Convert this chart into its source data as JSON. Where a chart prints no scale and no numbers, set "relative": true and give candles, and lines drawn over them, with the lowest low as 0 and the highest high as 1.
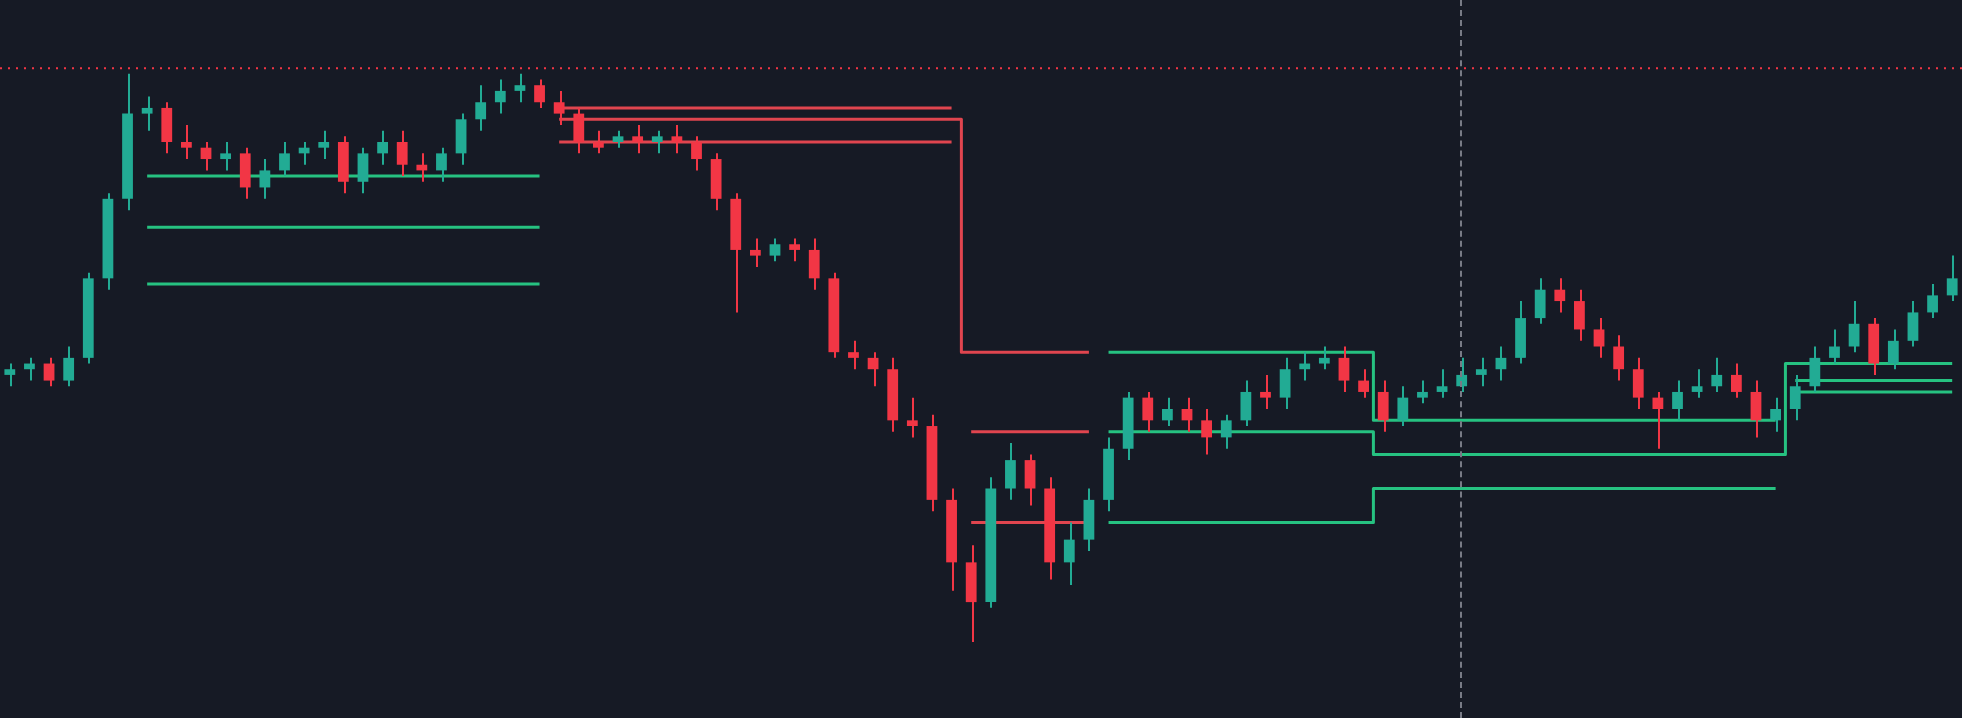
{
  "chart_data": {
    "type": "candlestick",
    "relative": true,
    "grid": false,
    "legend": false,
    "categories": [
      null,
      null,
      null,
      null,
      null,
      null,
      null,
      null,
      null,
      null,
      null,
      null,
      null,
      null,
      null,
      null,
      null,
      null,
      null,
      null,
      null,
      null,
      null,
      null,
      null,
      null,
      null,
      null,
      null,
      null,
      null,
      null,
      null,
      null,
      null,
      null,
      null,
      null,
      null,
      null,
      null,
      null,
      null,
      null,
      null,
      null,
      null,
      null,
      null,
      null,
      null,
      null,
      null,
      null,
      null,
      null,
      null,
      null,
      null,
      null,
      null,
      null,
      null,
      null,
      null,
      null,
      null,
      null,
      null,
      null,
      null,
      null,
      null,
      null,
      null,
      null,
      null,
      null,
      null,
      null,
      null,
      null,
      null,
      null,
      null,
      null,
      null,
      null,
      null,
      null,
      null,
      null,
      null,
      null,
      null,
      null,
      null,
      null,
      null,
      null
    ],
    "ohlc": [
      [
        0.47,
        0.49,
        0.45,
        0.48
      ],
      [
        0.48,
        0.5,
        0.46,
        0.49
      ],
      [
        0.49,
        0.5,
        0.45,
        0.46
      ],
      [
        0.46,
        0.52,
        0.45,
        0.5
      ],
      [
        0.5,
        0.65,
        0.49,
        0.64
      ],
      [
        0.64,
        0.79,
        0.62,
        0.78
      ],
      [
        0.78,
        1,
        0.76,
        0.93
      ],
      [
        0.93,
        0.96,
        0.9,
        0.94
      ],
      [
        0.94,
        0.95,
        0.86,
        0.88
      ],
      [
        0.88,
        0.91,
        0.85,
        0.87
      ],
      [
        0.87,
        0.88,
        0.83,
        0.85
      ],
      [
        0.85,
        0.88,
        0.83,
        0.86
      ],
      [
        0.86,
        0.87,
        0.78,
        0.8
      ],
      [
        0.8,
        0.85,
        0.78,
        0.83
      ],
      [
        0.83,
        0.88,
        0.82,
        0.86
      ],
      [
        0.86,
        0.88,
        0.84,
        0.87
      ],
      [
        0.87,
        0.9,
        0.85,
        0.88
      ],
      [
        0.88,
        0.89,
        0.79,
        0.81
      ],
      [
        0.81,
        0.87,
        0.79,
        0.86
      ],
      [
        0.86,
        0.9,
        0.84,
        0.88
      ],
      [
        0.88,
        0.9,
        0.82,
        0.84
      ],
      [
        0.84,
        0.86,
        0.81,
        0.83
      ],
      [
        0.83,
        0.87,
        0.81,
        0.86
      ],
      [
        0.86,
        0.93,
        0.84,
        0.92
      ],
      [
        0.92,
        0.98,
        0.9,
        0.95
      ],
      [
        0.95,
        0.99,
        0.93,
        0.97
      ],
      [
        0.97,
        1,
        0.95,
        0.98
      ],
      [
        0.98,
        0.99,
        0.94,
        0.95
      ],
      [
        0.95,
        0.97,
        0.91,
        0.93
      ],
      [
        0.93,
        0.94,
        0.86,
        0.88
      ],
      [
        0.88,
        0.9,
        0.86,
        0.87
      ],
      [
        0.88,
        0.9,
        0.87,
        0.89
      ],
      [
        0.89,
        0.91,
        0.86,
        0.88
      ],
      [
        0.88,
        0.9,
        0.86,
        0.89
      ],
      [
        0.89,
        0.91,
        0.86,
        0.88
      ],
      [
        0.88,
        0.89,
        0.83,
        0.85
      ],
      [
        0.85,
        0.86,
        0.76,
        0.78
      ],
      [
        0.78,
        0.79,
        0.58,
        0.69
      ],
      [
        0.69,
        0.71,
        0.66,
        0.68
      ],
      [
        0.68,
        0.71,
        0.67,
        0.7
      ],
      [
        0.7,
        0.71,
        0.67,
        0.69
      ],
      [
        0.69,
        0.71,
        0.62,
        0.64
      ],
      [
        0.64,
        0.65,
        0.5,
        0.51
      ],
      [
        0.51,
        0.53,
        0.48,
        0.5
      ],
      [
        0.5,
        0.51,
        0.45,
        0.48
      ],
      [
        0.48,
        0.5,
        0.37,
        0.39
      ],
      [
        0.39,
        0.43,
        0.36,
        0.38
      ],
      [
        0.38,
        0.4,
        0.23,
        0.25
      ],
      [
        0.25,
        0.27,
        0.09,
        0.14
      ],
      [
        0.14,
        0.17,
        0,
        0.07
      ],
      [
        0.07,
        0.29,
        0.06,
        0.27
      ],
      [
        0.27,
        0.35,
        0.25,
        0.32
      ],
      [
        0.32,
        0.33,
        0.24,
        0.27
      ],
      [
        0.27,
        0.29,
        0.11,
        0.14
      ],
      [
        0.14,
        0.21,
        0.1,
        0.18
      ],
      [
        0.18,
        0.27,
        0.16,
        0.25
      ],
      [
        0.25,
        0.36,
        0.23,
        0.34
      ],
      [
        0.34,
        0.44,
        0.32,
        0.43
      ],
      [
        0.43,
        0.44,
        0.37,
        0.39
      ],
      [
        0.39,
        0.43,
        0.38,
        0.41
      ],
      [
        0.41,
        0.43,
        0.37,
        0.39
      ],
      [
        0.39,
        0.41,
        0.33,
        0.36
      ],
      [
        0.36,
        0.4,
        0.34,
        0.39
      ],
      [
        0.39,
        0.46,
        0.38,
        0.44
      ],
      [
        0.44,
        0.47,
        0.41,
        0.43
      ],
      [
        0.43,
        0.5,
        0.41,
        0.48
      ],
      [
        0.48,
        0.51,
        0.46,
        0.49
      ],
      [
        0.49,
        0.52,
        0.48,
        0.5
      ],
      [
        0.5,
        0.52,
        0.44,
        0.46
      ],
      [
        0.46,
        0.48,
        0.43,
        0.44
      ],
      [
        0.44,
        0.46,
        0.37,
        0.39
      ],
      [
        0.39,
        0.45,
        0.38,
        0.43
      ],
      [
        0.43,
        0.46,
        0.42,
        0.44
      ],
      [
        0.44,
        0.48,
        0.43,
        0.45
      ],
      [
        0.45,
        0.5,
        0.44,
        0.47
      ],
      [
        0.47,
        0.5,
        0.45,
        0.48
      ],
      [
        0.48,
        0.52,
        0.46,
        0.5
      ],
      [
        0.5,
        0.6,
        0.49,
        0.57
      ],
      [
        0.57,
        0.64,
        0.56,
        0.62
      ],
      [
        0.62,
        0.64,
        0.58,
        0.6
      ],
      [
        0.6,
        0.62,
        0.53,
        0.55
      ],
      [
        0.55,
        0.57,
        0.5,
        0.52
      ],
      [
        0.52,
        0.54,
        0.46,
        0.48
      ],
      [
        0.48,
        0.5,
        0.41,
        0.43
      ],
      [
        0.43,
        0.44,
        0.34,
        0.41
      ],
      [
        0.41,
        0.46,
        0.39,
        0.44
      ],
      [
        0.44,
        0.48,
        0.43,
        0.45
      ],
      [
        0.45,
        0.5,
        0.44,
        0.47
      ],
      [
        0.47,
        0.49,
        0.43,
        0.44
      ],
      [
        0.44,
        0.46,
        0.36,
        0.39
      ],
      [
        0.39,
        0.43,
        0.37,
        0.41
      ],
      [
        0.41,
        0.47,
        0.39,
        0.45
      ],
      [
        0.45,
        0.52,
        0.44,
        0.5
      ],
      [
        0.5,
        0.55,
        0.49,
        0.52
      ],
      [
        0.52,
        0.6,
        0.51,
        0.56
      ],
      [
        0.56,
        0.57,
        0.47,
        0.49
      ],
      [
        0.49,
        0.55,
        0.48,
        0.53
      ],
      [
        0.53,
        0.6,
        0.52,
        0.58
      ],
      [
        0.58,
        0.63,
        0.57,
        0.61
      ],
      [
        0.61,
        0.68,
        0.6,
        0.64
      ]
    ],
    "series": [
      {
        "type": "step",
        "color": "#26c281",
        "values": [
          null,
          null,
          null,
          null,
          null,
          null,
          null,
          0.82,
          0.82,
          0.82,
          0.82,
          0.82,
          0.82,
          0.82,
          0.82,
          0.82,
          0.82,
          0.82,
          0.82,
          0.82,
          0.82,
          0.82,
          0.82,
          0.82,
          0.82,
          0.82,
          0.82,
          0.82,
          null,
          null,
          null,
          null,
          null,
          null,
          null,
          null,
          null,
          null,
          null,
          null,
          null,
          null,
          null,
          null,
          null,
          null,
          null,
          null,
          null,
          null,
          null,
          null,
          null,
          null,
          null,
          null,
          null,
          null,
          null,
          null,
          null,
          null,
          null,
          null,
          null,
          null,
          null,
          null,
          null,
          null,
          null,
          null,
          null,
          null,
          null,
          null,
          null,
          null,
          null,
          null,
          null,
          null,
          null,
          null,
          null,
          null,
          null,
          null,
          null,
          null,
          null,
          null,
          null,
          null,
          null,
          null,
          null,
          null,
          null,
          null
        ]
      },
      {
        "type": "step",
        "color": "#26c281",
        "values": [
          null,
          null,
          null,
          null,
          null,
          null,
          null,
          0.73,
          0.73,
          0.73,
          0.73,
          0.73,
          0.73,
          0.73,
          0.73,
          0.73,
          0.73,
          0.73,
          0.73,
          0.73,
          0.73,
          0.73,
          0.73,
          0.73,
          0.73,
          0.73,
          0.73,
          0.73,
          null,
          null,
          null,
          null,
          null,
          null,
          null,
          null,
          null,
          null,
          null,
          null,
          null,
          null,
          null,
          null,
          null,
          null,
          null,
          null,
          null,
          null,
          null,
          null,
          null,
          null,
          null,
          null,
          null,
          null,
          null,
          null,
          null,
          null,
          null,
          null,
          null,
          null,
          null,
          null,
          null,
          null,
          null,
          null,
          null,
          null,
          null,
          null,
          null,
          null,
          null,
          null,
          null,
          null,
          null,
          null,
          null,
          null,
          null,
          null,
          null,
          null,
          null,
          null,
          null,
          null,
          null,
          null,
          null,
          null,
          null,
          null
        ]
      },
      {
        "type": "step",
        "color": "#26c281",
        "values": [
          null,
          null,
          null,
          null,
          null,
          null,
          null,
          0.63,
          0.63,
          0.63,
          0.63,
          0.63,
          0.63,
          0.63,
          0.63,
          0.63,
          0.63,
          0.63,
          0.63,
          0.63,
          0.63,
          0.63,
          0.63,
          0.63,
          0.63,
          0.63,
          0.63,
          0.63,
          null,
          null,
          null,
          null,
          null,
          null,
          null,
          null,
          null,
          null,
          null,
          null,
          null,
          null,
          null,
          null,
          null,
          null,
          null,
          null,
          null,
          null,
          null,
          null,
          null,
          null,
          null,
          null,
          null,
          null,
          null,
          null,
          null,
          null,
          null,
          null,
          null,
          null,
          null,
          null,
          null,
          null,
          null,
          null,
          null,
          null,
          null,
          null,
          null,
          null,
          null,
          null,
          null,
          null,
          null,
          null,
          null,
          null,
          null,
          null,
          null,
          null,
          null,
          null,
          null,
          null,
          null,
          null,
          null,
          null,
          null,
          null
        ]
      },
      {
        "type": "step",
        "color": "#e0454f",
        "values": [
          null,
          null,
          null,
          null,
          null,
          null,
          null,
          null,
          null,
          null,
          null,
          null,
          null,
          null,
          null,
          null,
          null,
          null,
          null,
          null,
          null,
          null,
          null,
          null,
          null,
          null,
          null,
          null,
          0.94,
          0.94,
          0.94,
          0.94,
          0.94,
          0.94,
          0.94,
          0.94,
          0.94,
          0.94,
          0.94,
          0.94,
          0.94,
          0.94,
          0.94,
          0.94,
          0.94,
          0.94,
          0.94,
          0.94,
          0.94,
          null,
          null,
          null,
          null,
          null,
          null,
          null,
          null,
          null,
          null,
          null,
          null,
          null,
          null,
          null,
          null,
          null,
          null,
          null,
          null,
          null,
          null,
          null,
          null,
          null,
          null,
          null,
          null,
          null,
          null,
          null,
          null,
          null,
          null,
          null,
          null,
          null,
          null,
          null,
          null,
          null,
          null,
          null,
          null,
          null,
          null,
          null,
          null,
          null,
          null,
          null
        ]
      },
      {
        "type": "step",
        "color": "#e0454f",
        "values": [
          null,
          null,
          null,
          null,
          null,
          null,
          null,
          null,
          null,
          null,
          null,
          null,
          null,
          null,
          null,
          null,
          null,
          null,
          null,
          null,
          null,
          null,
          null,
          null,
          null,
          null,
          null,
          null,
          0.92,
          0.92,
          0.92,
          0.92,
          0.92,
          0.92,
          0.92,
          0.92,
          0.92,
          0.92,
          0.92,
          0.92,
          0.92,
          0.92,
          0.92,
          0.92,
          0.92,
          0.92,
          0.92,
          0.92,
          0.92,
          0.51,
          0.51,
          0.51,
          0.51,
          0.51,
          0.51,
          0.51,
          null,
          null,
          null,
          null,
          null,
          null,
          null,
          null,
          null,
          null,
          null,
          null,
          null,
          null,
          null,
          null,
          null,
          null,
          null,
          null,
          null,
          null,
          null,
          null,
          null,
          null,
          null,
          null,
          null,
          null,
          null,
          null,
          null,
          null,
          null,
          null,
          null,
          null,
          null,
          null,
          null,
          null,
          null,
          null
        ]
      },
      {
        "type": "step",
        "color": "#e0454f",
        "values": [
          null,
          null,
          null,
          null,
          null,
          null,
          null,
          null,
          null,
          null,
          null,
          null,
          null,
          null,
          null,
          null,
          null,
          null,
          null,
          null,
          null,
          null,
          null,
          null,
          null,
          null,
          null,
          null,
          0.88,
          0.88,
          0.88,
          0.88,
          0.88,
          0.88,
          0.88,
          0.88,
          0.88,
          0.88,
          0.88,
          0.88,
          0.88,
          0.88,
          0.88,
          0.88,
          0.88,
          0.88,
          0.88,
          0.88,
          0.88,
          null,
          null,
          null,
          null,
          null,
          null,
          null,
          null,
          null,
          null,
          null,
          null,
          null,
          null,
          null,
          null,
          null,
          null,
          null,
          null,
          null,
          null,
          null,
          null,
          null,
          null,
          null,
          null,
          null,
          null,
          null,
          null,
          null,
          null,
          null,
          null,
          null,
          null,
          null,
          null,
          null,
          null,
          null,
          null,
          null,
          null,
          null,
          null,
          null,
          null,
          null
        ]
      },
      {
        "type": "step",
        "color": "#e0454f",
        "values": [
          null,
          null,
          null,
          null,
          null,
          null,
          null,
          null,
          null,
          null,
          null,
          null,
          null,
          null,
          null,
          null,
          null,
          null,
          null,
          null,
          null,
          null,
          null,
          null,
          null,
          null,
          null,
          null,
          null,
          null,
          null,
          null,
          null,
          null,
          null,
          null,
          null,
          null,
          null,
          null,
          null,
          null,
          null,
          null,
          null,
          null,
          null,
          null,
          null,
          0.37,
          0.37,
          0.37,
          0.37,
          0.37,
          0.37,
          0.37,
          null,
          null,
          null,
          null,
          null,
          null,
          null,
          null,
          null,
          null,
          null,
          null,
          null,
          null,
          null,
          null,
          null,
          null,
          null,
          null,
          null,
          null,
          null,
          null,
          null,
          null,
          null,
          null,
          null,
          null,
          null,
          null,
          null,
          null,
          null,
          null,
          null,
          null,
          null,
          null,
          null,
          null,
          null,
          null
        ]
      },
      {
        "type": "step",
        "color": "#e0454f",
        "values": [
          null,
          null,
          null,
          null,
          null,
          null,
          null,
          null,
          null,
          null,
          null,
          null,
          null,
          null,
          null,
          null,
          null,
          null,
          null,
          null,
          null,
          null,
          null,
          null,
          null,
          null,
          null,
          null,
          null,
          null,
          null,
          null,
          null,
          null,
          null,
          null,
          null,
          null,
          null,
          null,
          null,
          null,
          null,
          null,
          null,
          null,
          null,
          null,
          null,
          0.21,
          0.21,
          0.21,
          0.21,
          0.21,
          0.21,
          0.21,
          null,
          null,
          null,
          null,
          null,
          null,
          null,
          null,
          null,
          null,
          null,
          null,
          null,
          null,
          null,
          null,
          null,
          null,
          null,
          null,
          null,
          null,
          null,
          null,
          null,
          null,
          null,
          null,
          null,
          null,
          null,
          null,
          null,
          null,
          null,
          null,
          null,
          null,
          null,
          null,
          null,
          null,
          null,
          null
        ]
      },
      {
        "type": "step",
        "color": "#26c281",
        "values": [
          null,
          null,
          null,
          null,
          null,
          null,
          null,
          null,
          null,
          null,
          null,
          null,
          null,
          null,
          null,
          null,
          null,
          null,
          null,
          null,
          null,
          null,
          null,
          null,
          null,
          null,
          null,
          null,
          null,
          null,
          null,
          null,
          null,
          null,
          null,
          null,
          null,
          null,
          null,
          null,
          null,
          null,
          null,
          null,
          null,
          null,
          null,
          null,
          null,
          null,
          null,
          null,
          null,
          null,
          null,
          null,
          0.51,
          0.51,
          0.51,
          0.51,
          0.51,
          0.51,
          0.51,
          0.51,
          0.51,
          0.51,
          0.51,
          0.51,
          0.51,
          0.51,
          0.39,
          0.39,
          0.39,
          0.39,
          0.39,
          0.39,
          0.39,
          0.39,
          0.39,
          0.39,
          0.39,
          0.39,
          0.39,
          0.39,
          0.39,
          0.39,
          0.39,
          0.39,
          0.39,
          0.39,
          0.39,
          null,
          null,
          null,
          null,
          null,
          null,
          null,
          null,
          null
        ]
      },
      {
        "type": "step",
        "color": "#26c281",
        "values": [
          null,
          null,
          null,
          null,
          null,
          null,
          null,
          null,
          null,
          null,
          null,
          null,
          null,
          null,
          null,
          null,
          null,
          null,
          null,
          null,
          null,
          null,
          null,
          null,
          null,
          null,
          null,
          null,
          null,
          null,
          null,
          null,
          null,
          null,
          null,
          null,
          null,
          null,
          null,
          null,
          null,
          null,
          null,
          null,
          null,
          null,
          null,
          null,
          null,
          null,
          null,
          null,
          null,
          null,
          null,
          null,
          0.37,
          0.37,
          0.37,
          0.37,
          0.37,
          0.37,
          0.37,
          0.37,
          0.37,
          0.37,
          0.37,
          0.37,
          0.37,
          0.37,
          0.33,
          0.33,
          0.33,
          0.33,
          0.33,
          0.33,
          0.33,
          0.33,
          0.33,
          0.33,
          0.33,
          0.33,
          0.33,
          0.33,
          0.33,
          0.33,
          0.33,
          0.33,
          0.33,
          0.33,
          0.33,
          0.49,
          0.49,
          0.49,
          0.49,
          0.49,
          0.49,
          0.49,
          0.49,
          0.49
        ]
      },
      {
        "type": "step",
        "color": "#26c281",
        "values": [
          null,
          null,
          null,
          null,
          null,
          null,
          null,
          null,
          null,
          null,
          null,
          null,
          null,
          null,
          null,
          null,
          null,
          null,
          null,
          null,
          null,
          null,
          null,
          null,
          null,
          null,
          null,
          null,
          null,
          null,
          null,
          null,
          null,
          null,
          null,
          null,
          null,
          null,
          null,
          null,
          null,
          null,
          null,
          null,
          null,
          null,
          null,
          null,
          null,
          null,
          null,
          null,
          null,
          null,
          null,
          null,
          0.21,
          0.21,
          0.21,
          0.21,
          0.21,
          0.21,
          0.21,
          0.21,
          0.21,
          0.21,
          0.21,
          0.21,
          0.21,
          0.21,
          0.27,
          0.27,
          0.27,
          0.27,
          0.27,
          0.27,
          0.27,
          0.27,
          0.27,
          0.27,
          0.27,
          0.27,
          0.27,
          0.27,
          0.27,
          0.27,
          0.27,
          0.27,
          0.27,
          0.27,
          0.27,
          null,
          null,
          null,
          null,
          null,
          null,
          null,
          null,
          null
        ]
      },
      {
        "type": "step",
        "color": "#26c281",
        "values": [
          null,
          null,
          null,
          null,
          null,
          null,
          null,
          null,
          null,
          null,
          null,
          null,
          null,
          null,
          null,
          null,
          null,
          null,
          null,
          null,
          null,
          null,
          null,
          null,
          null,
          null,
          null,
          null,
          null,
          null,
          null,
          null,
          null,
          null,
          null,
          null,
          null,
          null,
          null,
          null,
          null,
          null,
          null,
          null,
          null,
          null,
          null,
          null,
          null,
          null,
          null,
          null,
          null,
          null,
          null,
          null,
          null,
          null,
          null,
          null,
          null,
          null,
          null,
          null,
          null,
          null,
          null,
          null,
          null,
          null,
          null,
          null,
          null,
          null,
          null,
          null,
          null,
          null,
          null,
          null,
          null,
          null,
          null,
          null,
          null,
          null,
          null,
          null,
          null,
          null,
          null,
          0.46,
          0.46,
          0.46,
          0.46,
          0.46,
          0.46,
          0.46,
          0.46,
          0.46
        ]
      },
      {
        "type": "step",
        "color": "#26c281",
        "values": [
          null,
          null,
          null,
          null,
          null,
          null,
          null,
          null,
          null,
          null,
          null,
          null,
          null,
          null,
          null,
          null,
          null,
          null,
          null,
          null,
          null,
          null,
          null,
          null,
          null,
          null,
          null,
          null,
          null,
          null,
          null,
          null,
          null,
          null,
          null,
          null,
          null,
          null,
          null,
          null,
          null,
          null,
          null,
          null,
          null,
          null,
          null,
          null,
          null,
          null,
          null,
          null,
          null,
          null,
          null,
          null,
          null,
          null,
          null,
          null,
          null,
          null,
          null,
          null,
          null,
          null,
          null,
          null,
          null,
          null,
          null,
          null,
          null,
          null,
          null,
          null,
          null,
          null,
          null,
          null,
          null,
          null,
          null,
          null,
          null,
          null,
          null,
          null,
          null,
          null,
          null,
          0.44,
          0.44,
          0.44,
          0.44,
          0.44,
          0.44,
          0.44,
          0.44,
          0.44
        ]
      }
    ],
    "ref_lines": [
      {
        "axis": "y",
        "value": 1.01,
        "color": "#f23645",
        "line_style": "dotted"
      }
    ]
  }
}
